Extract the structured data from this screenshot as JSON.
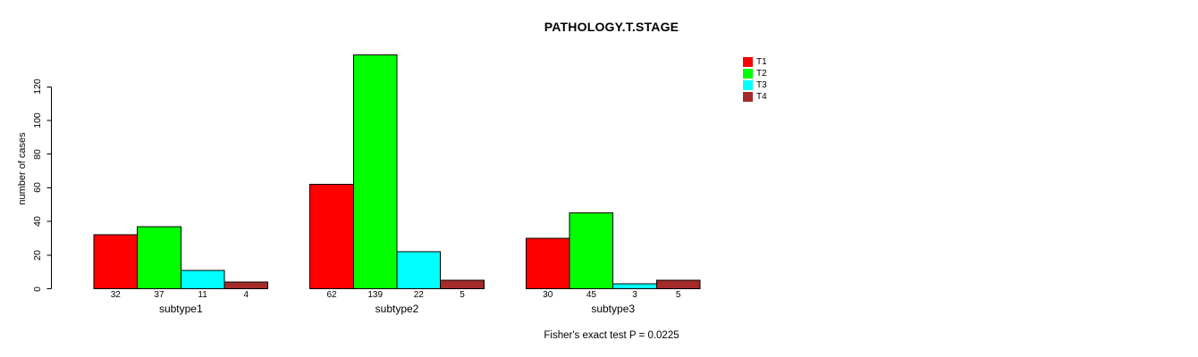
{
  "chart_data": {
    "type": "bar",
    "title": "PATHOLOGY.T.STAGE",
    "ylabel": "number of cases",
    "xlabel": "",
    "categories": [
      "subtype1",
      "subtype2",
      "subtype3"
    ],
    "series": [
      {
        "name": "T1",
        "color": "#FF0000",
        "values": [
          32,
          62,
          30
        ]
      },
      {
        "name": "T2",
        "color": "#00FF00",
        "values": [
          37,
          139,
          45
        ]
      },
      {
        "name": "T3",
        "color": "#00FFFF",
        "values": [
          11,
          22,
          3
        ]
      },
      {
        "name": "T4",
        "color": "#A52A2A",
        "values": [
          4,
          5,
          5
        ]
      }
    ],
    "yticks": [
      0,
      20,
      40,
      60,
      80,
      100,
      120
    ],
    "ylim": [
      0,
      120
    ],
    "grid": false,
    "bar_border_color": "#000000",
    "background": "#FFFFFF",
    "legend": {
      "position": "top-right",
      "entries": [
        "T1",
        "T2",
        "T3",
        "T4"
      ]
    },
    "annotation": "Fisher's exact test P = 0.0225",
    "bar_value_labels_shown": true
  }
}
